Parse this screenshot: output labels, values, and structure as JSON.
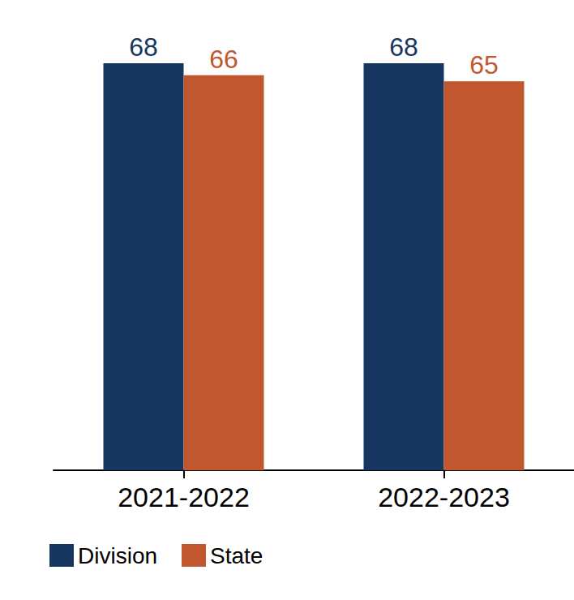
{
  "chart_data": {
    "type": "bar",
    "categories": [
      "2021-2022",
      "2022-2023"
    ],
    "series": [
      {
        "name": "Division",
        "color": "#17365f",
        "values": [
          68,
          68
        ]
      },
      {
        "name": "State",
        "color": "#c0572e",
        "values": [
          66,
          65
        ]
      }
    ],
    "ylim": [
      0,
      68
    ],
    "grid": false,
    "legend": "bottom-left",
    "data_labels": true,
    "tick_labels": "x"
  }
}
